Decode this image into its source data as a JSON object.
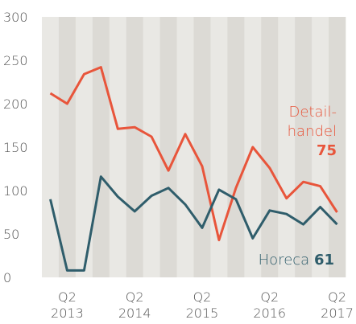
{
  "chart_data": {
    "type": "line",
    "categories": [
      null,
      "Q2 2013",
      null,
      null,
      null,
      "Q2 2014",
      null,
      null,
      null,
      "Q2 2015",
      null,
      null,
      null,
      "Q2 2016",
      null,
      null,
      null,
      "Q2 2017"
    ],
    "series": [
      {
        "name": "Detail-handel",
        "color": "#e8553b",
        "values": [
          212,
          200,
          234,
          242,
          171,
          173,
          162,
          123,
          165,
          128,
          43,
          103,
          150,
          126,
          91,
          110,
          105,
          75
        ]
      },
      {
        "name": "Horeca",
        "color": "#2f5d6b",
        "values": [
          90,
          8,
          8,
          116,
          93,
          76,
          94,
          103,
          84,
          57,
          101,
          90,
          45,
          77,
          73,
          61,
          81,
          61
        ]
      }
    ],
    "ylim": [
      0,
      300
    ],
    "yticks": [
      0,
      50,
      100,
      150,
      200,
      250,
      300
    ],
    "grid": false
  }
}
